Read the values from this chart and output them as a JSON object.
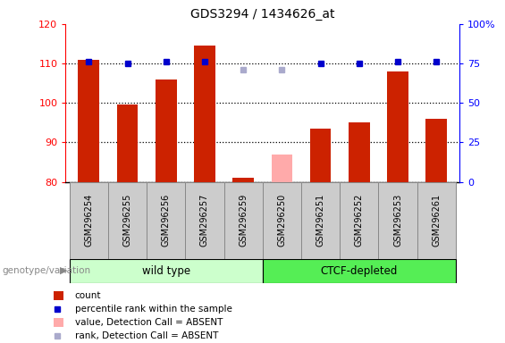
{
  "title": "GDS3294 / 1434626_at",
  "samples": [
    "GSM296254",
    "GSM296255",
    "GSM296256",
    "GSM296257",
    "GSM296259",
    "GSM296250",
    "GSM296251",
    "GSM296252",
    "GSM296253",
    "GSM296261"
  ],
  "count_values": [
    111.0,
    99.5,
    106.0,
    114.5,
    81.0,
    null,
    93.5,
    95.0,
    108.0,
    96.0
  ],
  "percentile_values": [
    110.5,
    110.0,
    110.5,
    110.5,
    null,
    null,
    110.0,
    110.0,
    110.5,
    110.5
  ],
  "absent_value_values": [
    null,
    null,
    null,
    null,
    null,
    87.0,
    null,
    null,
    null,
    null
  ],
  "absent_rank_values": [
    null,
    null,
    null,
    null,
    null,
    108.5,
    null,
    null,
    null,
    null
  ],
  "absent_rank_259": [
    108.5,
    null
  ],
  "ylim_left": [
    80,
    120
  ],
  "ylim_right": [
    0,
    100
  ],
  "yticks_left": [
    80,
    90,
    100,
    110,
    120
  ],
  "yticks_right": [
    0,
    25,
    50,
    75,
    100
  ],
  "group1_label": "wild type",
  "group2_label": "CTCF-depleted",
  "group1_indices": [
    0,
    1,
    2,
    3,
    4
  ],
  "group2_indices": [
    5,
    6,
    7,
    8,
    9
  ],
  "group_label_left": "genotype/variation",
  "bar_color": "#cc2200",
  "absent_bar_color": "#ffaaaa",
  "percentile_color": "#0000cc",
  "absent_rank_color": "#aaaacc",
  "group1_bg": "#ccffcc",
  "group2_bg": "#55ee55",
  "sample_bg": "#cccccc",
  "legend_items": [
    {
      "label": "count",
      "type": "bar",
      "color": "#cc2200"
    },
    {
      "label": "percentile rank within the sample",
      "type": "square",
      "color": "#0000cc"
    },
    {
      "label": "value, Detection Call = ABSENT",
      "type": "bar",
      "color": "#ffaaaa"
    },
    {
      "label": "rank, Detection Call = ABSENT",
      "type": "square",
      "color": "#aaaacc"
    }
  ]
}
